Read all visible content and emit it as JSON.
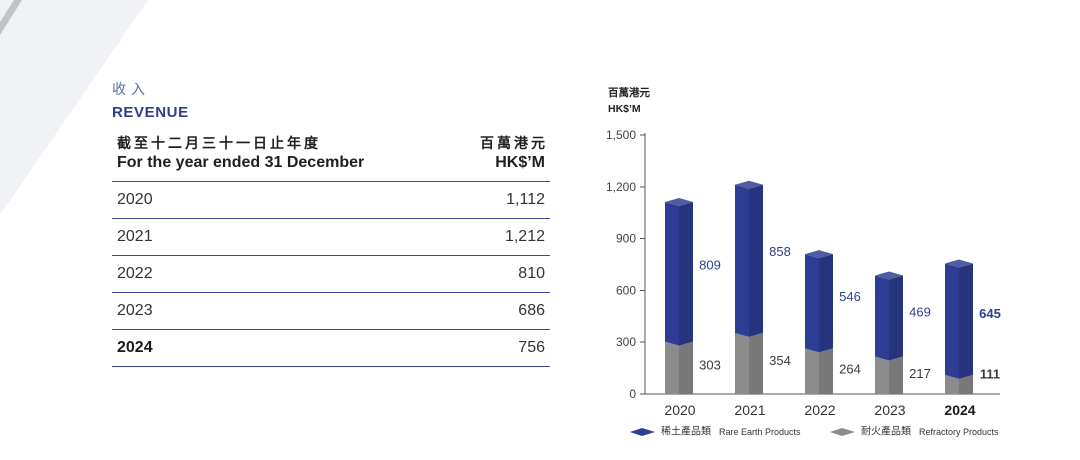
{
  "section": {
    "title_zh": "收入",
    "title_en": "REVENUE"
  },
  "table": {
    "header": {
      "period_zh": "截至十二月三十一日止年度",
      "period_en": "For the year ended 31 December",
      "unit_zh": "百萬港元",
      "unit_en": "HK$’M"
    },
    "rows": [
      {
        "year": "2020",
        "value": "1,112"
      },
      {
        "year": "2021",
        "value": "1,212"
      },
      {
        "year": "2022",
        "value": "810"
      },
      {
        "year": "2023",
        "value": "686"
      },
      {
        "year": "2024",
        "value": "756"
      }
    ]
  },
  "chart_data": {
    "type": "bar",
    "stacked": true,
    "ylabel_zh": "百萬港元",
    "ylabel_en": "HK$’M",
    "categories": [
      "2020",
      "2021",
      "2022",
      "2023",
      "2024"
    ],
    "series": [
      {
        "name": "Rare Earth Products",
        "name_zh": "稀土產品類",
        "values": [
          809,
          858,
          546,
          469,
          645
        ],
        "color": "#2c3d93",
        "label_color": "#2e3f90"
      },
      {
        "name": "Refractory Products",
        "name_zh": "耐火產品類",
        "values": [
          303,
          354,
          264,
          217,
          111
        ],
        "color": "#8c8c8c",
        "label_color": "#3a3a3a"
      }
    ],
    "ylim": [
      0,
      1500
    ],
    "yticks": [
      0,
      300,
      600,
      900,
      1200,
      1500
    ],
    "grid": false,
    "legend": "bottom"
  }
}
